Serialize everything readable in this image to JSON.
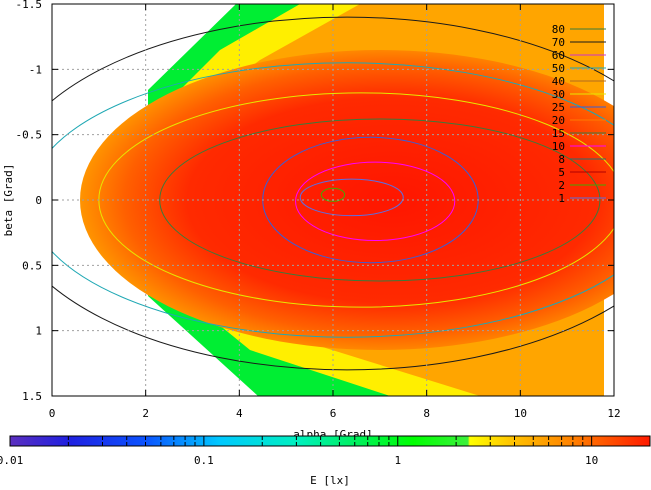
{
  "chart_data": {
    "type": "heatmap",
    "title": "",
    "xlabel": "alpha [Grad]",
    "ylabel": "beta [Grad]",
    "xlim": [
      0,
      12
    ],
    "ylim": [
      -1.5,
      1.5
    ],
    "y_reversed": true,
    "x_ticks": [
      0,
      2,
      4,
      6,
      8,
      10,
      12
    ],
    "x_tick_labels": [
      "0",
      "2",
      "4",
      "6",
      "8",
      "10",
      "12"
    ],
    "y_ticks": [
      -1.5,
      -1,
      -0.5,
      0,
      0.5,
      1,
      1.5
    ],
    "y_tick_labels": [
      "-1.5",
      "-1",
      "-0.5",
      "0",
      "0.5",
      "1",
      "1.5"
    ],
    "grid": true,
    "contour_levels": [
      {
        "label": "80",
        "value": 80,
        "color": "#3b7a3b"
      },
      {
        "label": "70",
        "value": 70,
        "color": "#1a1a1a"
      },
      {
        "label": "60",
        "value": 60,
        "color": "#cc33cc"
      },
      {
        "label": "50",
        "value": 50,
        "color": "#1fa8b4"
      },
      {
        "label": "40",
        "value": 40,
        "color": "#b06a20"
      },
      {
        "label": "30",
        "value": 30,
        "color": "#e7e700"
      },
      {
        "label": "25",
        "value": 25,
        "color": "#3a5fd9"
      },
      {
        "label": "20",
        "value": 20,
        "color": "#ff7a00"
      },
      {
        "label": "15",
        "value": 15,
        "color": "#3b7a3b"
      },
      {
        "label": "10",
        "value": 10,
        "color": "#ff00ff"
      },
      {
        "label": "8",
        "value": 8,
        "color": "#2a7070"
      },
      {
        "label": "5",
        "value": 5,
        "color": "#b00000"
      },
      {
        "label": "2",
        "value": 2,
        "color": "#44aa00"
      },
      {
        "label": "1",
        "value": 1,
        "color": "#5b6fe3"
      }
    ],
    "contour_shapes": [
      {
        "color": "#1a1a1a",
        "cx": 6.3,
        "cy": -0.05,
        "rx": 7.4,
        "ry": 1.35
      },
      {
        "color": "#1fa8b4",
        "cx": 6.3,
        "cy": 0.0,
        "rx": 6.8,
        "ry": 1.05
      },
      {
        "color": "#e7e700",
        "cx": 6.6,
        "cy": 0.0,
        "rx": 5.6,
        "ry": 0.82
      },
      {
        "color": "#3b7a3b",
        "cx": 7.0,
        "cy": 0.0,
        "rx": 4.7,
        "ry": 0.62
      },
      {
        "color": "#3a5fd9",
        "cx": 6.8,
        "cy": 0.0,
        "rx": 2.3,
        "ry": 0.48
      },
      {
        "color": "#ff00ff",
        "cx": 6.9,
        "cy": 0.01,
        "rx": 1.7,
        "ry": 0.3
      },
      {
        "color": "#5b6fe3",
        "cx": 6.4,
        "cy": -0.02,
        "rx": 1.1,
        "ry": 0.14
      },
      {
        "color": "#44aa00",
        "cx": 6.0,
        "cy": -0.04,
        "rx": 0.25,
        "ry": 0.05
      }
    ],
    "colorbar": {
      "label": "E [lx]",
      "scale": "log",
      "range": [
        0.01,
        20
      ],
      "tick_values": [
        0.01,
        0.1,
        1,
        10
      ],
      "tick_labels": [
        "0.01",
        "0.1",
        "1",
        "10"
      ],
      "stops": [
        {
          "v": 0.01,
          "color": "#5b2fbf"
        },
        {
          "v": 0.02,
          "color": "#2020e0"
        },
        {
          "v": 0.05,
          "color": "#0b53ff"
        },
        {
          "v": 0.12,
          "color": "#00c8ff"
        },
        {
          "v": 0.3,
          "color": "#00f0c0"
        },
        {
          "v": 0.6,
          "color": "#00f060"
        },
        {
          "v": 1.2,
          "color": "#00ff00"
        },
        {
          "v": 2.3,
          "color": "#3cf03c"
        },
        {
          "v": 2.35,
          "color": "#ffff00"
        },
        {
          "v": 4,
          "color": "#ffc000"
        },
        {
          "v": 8,
          "color": "#ff8000"
        },
        {
          "v": 20,
          "color": "#ff1a00"
        }
      ]
    },
    "region_colors": {
      "edge": "#00ee33",
      "bright": "#ffef00",
      "orange": "#ffa500",
      "core": "#ff1f00"
    }
  }
}
